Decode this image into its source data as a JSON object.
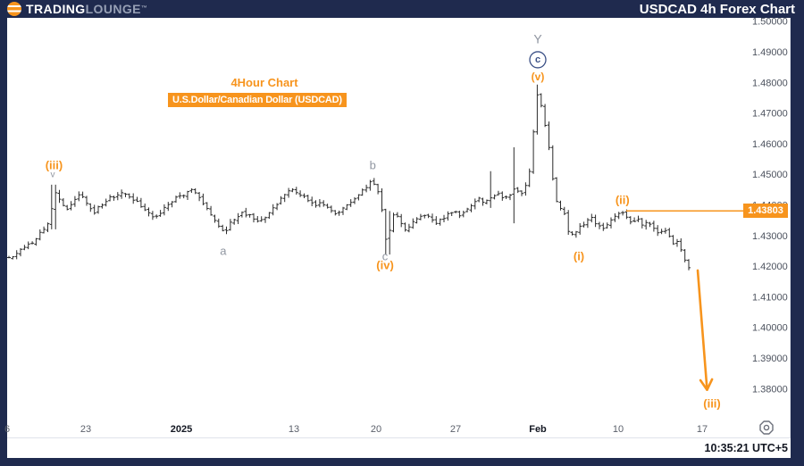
{
  "header": {
    "brand_primary": "TRADING",
    "brand_secondary": "LOUNGE",
    "trademark": "™",
    "title": "USDCAD 4h Forex Chart"
  },
  "chart_labels": {
    "timeframe": "4Hour Chart",
    "instrument": "U.S.Dollar/Canadian Dollar (USDCAD)"
  },
  "status_bar": {
    "time": "10:35:21 UTC+5"
  },
  "icons": {
    "bottom_right": "gear-nut-icon"
  },
  "colors": {
    "navy": "#1f2a4e",
    "orange": "#f7941d",
    "panel": "#ffffff",
    "bar": "#2b2b2b",
    "gray_label": "#9096a1",
    "axis_text": "#4c525e",
    "bold_axis_text": "#131722",
    "date_text": "#5a5f6a",
    "grid_line": "#e0e3eb",
    "circle_navy": "#3b5086",
    "icon_gray": "#6d717c"
  },
  "chart_data": {
    "type": "line",
    "style": "ohlc-bars",
    "title": "USDCAD 4h Forex Chart",
    "instrument": "USDCAD",
    "timeframe": "4h",
    "grid": false,
    "legend": false,
    "last_price_label": "1.43803",
    "bar_count": 176,
    "y_axis": {
      "side": "right",
      "ticks": [
        "1.50000",
        "1.49000",
        "1.48000",
        "1.47000",
        "1.46000",
        "1.45000",
        "1.44000",
        "1.43000",
        "1.42000",
        "1.41000",
        "1.40000",
        "1.39000",
        "1.38000"
      ],
      "min": 1.374,
      "max": 1.501
    },
    "x_axis": {
      "labels": [
        {
          "text": "6",
          "pos": 0.0,
          "bold": false
        },
        {
          "text": "23",
          "pos": 0.1073,
          "bold": false
        },
        {
          "text": "2025",
          "pos": 0.2378,
          "bold": true
        },
        {
          "text": "13",
          "pos": 0.3915,
          "bold": false
        },
        {
          "text": "20",
          "pos": 0.5037,
          "bold": false
        },
        {
          "text": "27",
          "pos": 0.6122,
          "bold": false
        },
        {
          "text": "Feb",
          "pos": 0.7244,
          "bold": true
        },
        {
          "text": "10",
          "pos": 0.8341,
          "bold": false
        },
        {
          "text": "17",
          "pos": 0.9488,
          "bold": false
        }
      ]
    },
    "series_anchors": [
      [
        0.0,
        1.4224
      ],
      [
        0.0122,
        1.4241
      ],
      [
        0.0244,
        1.4264
      ],
      [
        0.0366,
        1.4282
      ],
      [
        0.0463,
        1.4311
      ],
      [
        0.0549,
        1.4334
      ],
      [
        0.0598,
        1.4369
      ],
      [
        0.0634,
        1.4451
      ],
      [
        0.0695,
        1.4433
      ],
      [
        0.0756,
        1.4398
      ],
      [
        0.0829,
        1.4381
      ],
      [
        0.0915,
        1.4416
      ],
      [
        0.1,
        1.4436
      ],
      [
        0.1085,
        1.4404
      ],
      [
        0.1183,
        1.4375
      ],
      [
        0.128,
        1.4399
      ],
      [
        0.139,
        1.4422
      ],
      [
        0.15,
        1.4431
      ],
      [
        0.161,
        1.444
      ],
      [
        0.1707,
        1.4422
      ],
      [
        0.1817,
        1.4399
      ],
      [
        0.1915,
        1.4375
      ],
      [
        0.2,
        1.4358
      ],
      [
        0.2098,
        1.4375
      ],
      [
        0.2195,
        1.4404
      ],
      [
        0.2305,
        1.4422
      ],
      [
        0.2415,
        1.4433
      ],
      [
        0.2512,
        1.4451
      ],
      [
        0.261,
        1.4428
      ],
      [
        0.2707,
        1.4393
      ],
      [
        0.2805,
        1.4358
      ],
      [
        0.2902,
        1.4328
      ],
      [
        0.2976,
        1.4311
      ],
      [
        0.3049,
        1.434
      ],
      [
        0.3134,
        1.4361
      ],
      [
        0.322,
        1.4375
      ],
      [
        0.3317,
        1.4364
      ],
      [
        0.3415,
        1.4346
      ],
      [
        0.3512,
        1.4358
      ],
      [
        0.361,
        1.4381
      ],
      [
        0.3707,
        1.441
      ],
      [
        0.3805,
        1.444
      ],
      [
        0.3902,
        1.4451
      ],
      [
        0.4,
        1.4436
      ],
      [
        0.4098,
        1.4416
      ],
      [
        0.4195,
        1.4399
      ],
      [
        0.4293,
        1.441
      ],
      [
        0.439,
        1.4389
      ],
      [
        0.4488,
        1.4369
      ],
      [
        0.4585,
        1.4387
      ],
      [
        0.4683,
        1.4407
      ],
      [
        0.478,
        1.4428
      ],
      [
        0.4878,
        1.4451
      ],
      [
        0.4951,
        1.4477
      ],
      [
        0.5024,
        1.4463
      ],
      [
        0.5098,
        1.4422
      ],
      [
        0.5146,
        1.4305
      ],
      [
        0.5195,
        1.4267
      ],
      [
        0.5244,
        1.4355
      ],
      [
        0.5305,
        1.4375
      ],
      [
        0.5366,
        1.434
      ],
      [
        0.5439,
        1.4317
      ],
      [
        0.5512,
        1.4334
      ],
      [
        0.5585,
        1.4352
      ],
      [
        0.5671,
        1.4369
      ],
      [
        0.5756,
        1.4358
      ],
      [
        0.5841,
        1.434
      ],
      [
        0.5927,
        1.4352
      ],
      [
        0.6012,
        1.4369
      ],
      [
        0.6098,
        1.4381
      ],
      [
        0.6183,
        1.4366
      ],
      [
        0.6268,
        1.4387
      ],
      [
        0.6354,
        1.4404
      ],
      [
        0.6439,
        1.4422
      ],
      [
        0.6524,
        1.4407
      ],
      [
        0.661,
        1.4422
      ],
      [
        0.6695,
        1.444
      ],
      [
        0.6768,
        1.4416
      ],
      [
        0.6854,
        1.4433
      ],
      [
        0.6939,
        1.4457
      ],
      [
        0.7012,
        1.4428
      ],
      [
        0.7085,
        1.4463
      ],
      [
        0.7146,
        1.453
      ],
      [
        0.7195,
        1.4675
      ],
      [
        0.7244,
        1.4769
      ],
      [
        0.7293,
        1.4725
      ],
      [
        0.7341,
        1.4661
      ],
      [
        0.739,
        1.4597
      ],
      [
        0.7439,
        1.4501
      ],
      [
        0.7488,
        1.4422
      ],
      [
        0.7537,
        1.4375
      ],
      [
        0.7585,
        1.441
      ],
      [
        0.7634,
        1.4334
      ],
      [
        0.7695,
        1.4297
      ],
      [
        0.7756,
        1.4311
      ],
      [
        0.7829,
        1.4328
      ],
      [
        0.7902,
        1.4346
      ],
      [
        0.7976,
        1.4358
      ],
      [
        0.8049,
        1.4334
      ],
      [
        0.8122,
        1.4323
      ],
      [
        0.8195,
        1.434
      ],
      [
        0.8268,
        1.4358
      ],
      [
        0.8341,
        1.4369
      ],
      [
        0.8402,
        1.4375
      ],
      [
        0.8463,
        1.4358
      ],
      [
        0.8537,
        1.434
      ],
      [
        0.861,
        1.4352
      ],
      [
        0.8683,
        1.4334
      ],
      [
        0.8756,
        1.4346
      ],
      [
        0.8829,
        1.4323
      ],
      [
        0.8902,
        1.4305
      ],
      [
        0.8976,
        1.4317
      ],
      [
        0.9049,
        1.4293
      ],
      [
        0.911,
        1.427
      ],
      [
        0.9159,
        1.4282
      ],
      [
        0.9207,
        1.4247
      ],
      [
        0.9256,
        1.4212
      ],
      [
        0.9305,
        1.4198
      ]
    ],
    "spikes": [
      {
        "pos": 0.0634,
        "high": 1.4466,
        "low": 1.432
      },
      {
        "pos": 0.5195,
        "high": 1.438,
        "low": 1.4238
      },
      {
        "pos": 0.661,
        "high": 1.451,
        "low": 1.439
      },
      {
        "pos": 0.6939,
        "high": 1.4588,
        "low": 1.434
      },
      {
        "pos": 0.7244,
        "high": 1.4793,
        "low": 1.469
      }
    ],
    "resistance_line": {
      "price": 1.43803,
      "from_pos": 0.845
    },
    "arrow": {
      "from_pos": 0.9427,
      "from_price": 1.4186,
      "to_pos": 0.9555,
      "to_price": 1.3796
    },
    "annotations": [
      {
        "text": "(iii)",
        "pos": 0.064,
        "price": 1.453,
        "color": "orange",
        "size": 13,
        "bold": true
      },
      {
        "text": "v",
        "pos": 0.0622,
        "price": 1.4498,
        "color": "gray",
        "size": 10,
        "bold": false
      },
      {
        "text": "a",
        "pos": 0.295,
        "price": 1.425,
        "color": "gray",
        "size": 13,
        "bold": false
      },
      {
        "text": "b",
        "pos": 0.499,
        "price": 1.453,
        "color": "gray",
        "size": 13,
        "bold": false
      },
      {
        "text": "c",
        "pos": 0.5159,
        "price": 1.4232,
        "color": "gray",
        "size": 13,
        "bold": false
      },
      {
        "text": "(iv)",
        "pos": 0.5159,
        "price": 1.4203,
        "color": "orange",
        "size": 13,
        "bold": true
      },
      {
        "text": "Y",
        "pos": 0.7244,
        "price": 1.4942,
        "color": "gray",
        "size": 14,
        "bold": false
      },
      {
        "text": "c",
        "pos": 0.7244,
        "price": 1.4874,
        "color": "navy",
        "size": 11,
        "bold": true,
        "circled": true
      },
      {
        "text": "(v)",
        "pos": 0.7244,
        "price": 1.4818,
        "color": "orange",
        "size": 12,
        "bold": true
      },
      {
        "text": "(i)",
        "pos": 0.7805,
        "price": 1.4232,
        "color": "orange",
        "size": 13,
        "bold": true
      },
      {
        "text": "(ii)",
        "pos": 0.84,
        "price": 1.4416,
        "color": "orange",
        "size": 13,
        "bold": true
      },
      {
        "text": "(iii)",
        "pos": 0.9622,
        "price": 1.3751,
        "color": "orange",
        "size": 13,
        "bold": true
      }
    ]
  }
}
